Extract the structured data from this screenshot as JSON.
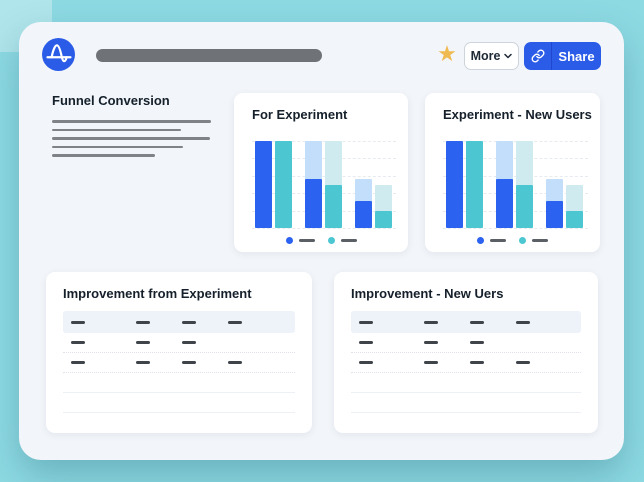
{
  "palette": {
    "page_bg": "#8edae3",
    "surface_bg": "#f2f5f9",
    "card_bg": "#ffffff",
    "brand_blue": "#2b5ce8",
    "bar_blue": "#2b62ef",
    "bar_blue_light": "#c3defa",
    "bar_teal": "#4cc7d1",
    "bar_teal_light": "#d0ebef",
    "star_gold": "#f0ba52",
    "skeleton_dark": "#6f7276",
    "skeleton_gray": "#7f8287",
    "dash_dark": "#3f444a",
    "table_header_bg": "#eef2f9"
  },
  "topbar": {
    "logo_icon": "amplitude-wave-logo",
    "star_glyph": "★",
    "more": {
      "label": "More",
      "caret_icon": "chevron-down"
    },
    "share": {
      "label": "Share",
      "link_icon": "link"
    }
  },
  "funnel_section": {
    "title": "Funnel Conversion",
    "skeleton_line_widths": [
      159,
      129,
      158,
      131,
      103
    ]
  },
  "chart_data": [
    {
      "type": "bar",
      "title": "For Experiment",
      "categories": [
        "group-1",
        "group-2",
        "group-3"
      ],
      "series": [
        {
          "name": "series-blue",
          "color": "#2b62ef",
          "light_color": "#c3defa",
          "totals_pct": [
            100,
            100,
            56
          ],
          "converted_pct": [
            100,
            56,
            31
          ]
        },
        {
          "name": "series-teal",
          "color": "#4cc7d1",
          "light_color": "#d0ebef",
          "totals_pct": [
            100,
            100,
            50
          ],
          "converted_pct": [
            100,
            50,
            20
          ]
        }
      ],
      "ylim": [
        0,
        100
      ],
      "grid": true,
      "legend_position": "bottom",
      "legend_labels_are_placeholders": true
    },
    {
      "type": "bar",
      "title": "Experiment - New Users",
      "categories": [
        "group-1",
        "group-2",
        "group-3"
      ],
      "series": [
        {
          "name": "series-blue",
          "color": "#2b62ef",
          "light_color": "#c3defa",
          "totals_pct": [
            100,
            100,
            56
          ],
          "converted_pct": [
            100,
            56,
            31
          ]
        },
        {
          "name": "series-teal",
          "color": "#4cc7d1",
          "light_color": "#d0ebef",
          "totals_pct": [
            100,
            100,
            50
          ],
          "converted_pct": [
            100,
            50,
            20
          ]
        }
      ],
      "ylim": [
        0,
        100
      ],
      "grid": true,
      "legend_position": "bottom",
      "legend_labels_are_placeholders": true
    }
  ],
  "tables": [
    {
      "title": "Improvement from Experiment",
      "header_cells": [
        1,
        1,
        1,
        1
      ],
      "rows": [
        [
          1,
          1,
          1,
          0
        ],
        [
          1,
          1,
          1,
          1
        ],
        [
          0,
          0,
          0,
          0
        ],
        [
          0,
          0,
          0,
          0
        ]
      ]
    },
    {
      "title": "Improvement - New Uers",
      "header_cells": [
        1,
        1,
        1,
        1
      ],
      "rows": [
        [
          1,
          1,
          1,
          0
        ],
        [
          1,
          1,
          1,
          1
        ],
        [
          0,
          0,
          0,
          0
        ],
        [
          0,
          0,
          0,
          0
        ]
      ]
    }
  ]
}
